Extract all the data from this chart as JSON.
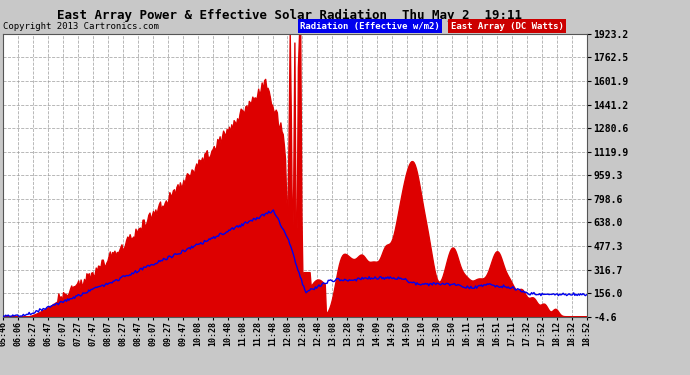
{
  "title": "East Array Power & Effective Solar Radiation  Thu May 2  19:11",
  "copyright": "Copyright 2013 Cartronics.com",
  "legend_radiation": "Radiation (Effective w/m2)",
  "legend_array": "East Array (DC Watts)",
  "yticks": [
    -4.6,
    156.0,
    316.7,
    477.3,
    638.0,
    798.6,
    959.3,
    1119.9,
    1280.6,
    1441.2,
    1601.9,
    1762.5,
    1923.2
  ],
  "ymin": -4.6,
  "ymax": 1923.2,
  "bg_color": "#c8c8c8",
  "plot_bg_color": "#ffffff",
  "red_fill_color": "#dd0000",
  "blue_line_color": "#0000ee",
  "grid_color": "#999999",
  "xtick_labels": [
    "05:46",
    "06:06",
    "06:27",
    "06:47",
    "07:07",
    "07:27",
    "07:47",
    "08:07",
    "08:27",
    "08:47",
    "09:07",
    "09:27",
    "09:47",
    "10:08",
    "10:28",
    "10:48",
    "11:08",
    "11:28",
    "11:48",
    "12:08",
    "12:28",
    "12:48",
    "13:08",
    "13:28",
    "13:49",
    "14:09",
    "14:29",
    "14:50",
    "15:10",
    "15:30",
    "15:50",
    "16:11",
    "16:31",
    "16:51",
    "17:11",
    "17:32",
    "17:52",
    "18:12",
    "18:32",
    "18:52"
  ]
}
